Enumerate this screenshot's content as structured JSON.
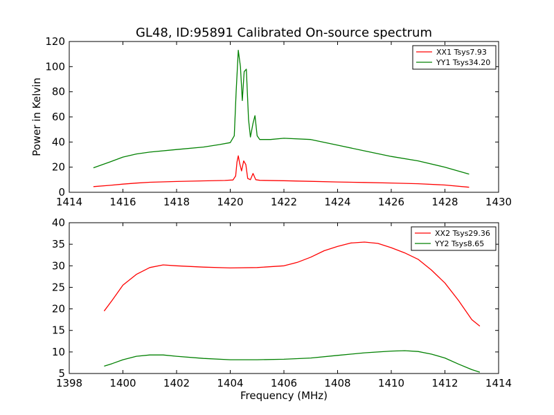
{
  "chart_data": [
    {
      "type": "line",
      "title": "GL48, ID:95891 Calibrated On-source spectrum",
      "xlabel": "",
      "ylabel": "Power in Kelvin",
      "xlim": [
        1414,
        1430
      ],
      "ylim": [
        0,
        120
      ],
      "xticks": [
        1414,
        1416,
        1418,
        1420,
        1422,
        1424,
        1426,
        1428,
        1430
      ],
      "yticks": [
        0,
        20,
        40,
        60,
        80,
        100,
        120
      ],
      "grid": false,
      "legend": "top-right",
      "series": [
        {
          "name": "XX1 Tsys7.93",
          "color": "#ff0000",
          "x": [
            1414.9,
            1415.5,
            1416,
            1416.5,
            1417,
            1418,
            1419,
            1419.8,
            1420.1,
            1420.2,
            1420.25,
            1420.3,
            1420.35,
            1420.42,
            1420.5,
            1420.58,
            1420.65,
            1420.75,
            1420.85,
            1420.95,
            1421.1,
            1422,
            1423,
            1424,
            1425,
            1426,
            1427,
            1428,
            1428.9
          ],
          "y": [
            4.5,
            5.5,
            6.5,
            7.3,
            8,
            8.6,
            9.1,
            9.4,
            9.8,
            13,
            24,
            29,
            23,
            17,
            25,
            22,
            11,
            10,
            15,
            10,
            9.5,
            9.2,
            8.7,
            8.2,
            7.8,
            7.4,
            6.8,
            5.8,
            4
          ]
        },
        {
          "name": "YY1 Tsys34.20",
          "color": "#008000",
          "x": [
            1414.9,
            1415.5,
            1416,
            1416.5,
            1417,
            1418,
            1419,
            1419.6,
            1420,
            1420.15,
            1420.22,
            1420.3,
            1420.38,
            1420.45,
            1420.52,
            1420.6,
            1420.68,
            1420.75,
            1420.85,
            1420.92,
            1421,
            1421.1,
            1421.5,
            1422,
            1423,
            1424,
            1425,
            1426,
            1427,
            1428,
            1428.9
          ],
          "y": [
            19.5,
            24,
            28,
            30.5,
            32,
            34,
            36,
            38,
            39.5,
            45,
            80,
            113,
            100,
            73,
            96,
            98,
            58,
            44,
            55,
            61,
            45,
            42,
            42,
            43,
            42,
            37.5,
            33,
            28.5,
            25,
            20,
            14.5
          ]
        }
      ]
    },
    {
      "type": "line",
      "title": "",
      "xlabel": "Frequency (MHz)",
      "ylabel": "",
      "xlim": [
        1398,
        1414
      ],
      "ylim": [
        5,
        40
      ],
      "xticks": [
        1398,
        1400,
        1402,
        1404,
        1406,
        1408,
        1410,
        1412,
        1414
      ],
      "yticks": [
        5,
        10,
        15,
        20,
        25,
        30,
        35,
        40
      ],
      "grid": false,
      "legend": "top-right",
      "series": [
        {
          "name": "XX2 Tsys29.36",
          "color": "#ff0000",
          "x": [
            1399.3,
            1399.6,
            1400,
            1400.5,
            1401,
            1401.5,
            1402,
            1403,
            1404,
            1405,
            1406,
            1406.5,
            1407,
            1407.5,
            1408,
            1408.5,
            1409,
            1409.5,
            1410,
            1410.5,
            1411,
            1411.5,
            1412,
            1412.5,
            1413,
            1413.3
          ],
          "y": [
            19.5,
            22,
            25.5,
            28,
            29.6,
            30.2,
            30,
            29.7,
            29.5,
            29.6,
            30,
            30.8,
            32,
            33.5,
            34.5,
            35.3,
            35.5,
            35.2,
            34.2,
            33,
            31.5,
            29,
            26,
            22,
            17.5,
            16
          ]
        },
        {
          "name": "YY2 Tsys8.65",
          "color": "#008000",
          "x": [
            1399.3,
            1399.6,
            1400,
            1400.5,
            1401,
            1401.5,
            1402,
            1403,
            1404,
            1405,
            1406,
            1407,
            1408,
            1409,
            1410,
            1410.5,
            1411,
            1411.5,
            1412,
            1412.5,
            1413,
            1413.3
          ],
          "y": [
            6.7,
            7.3,
            8.2,
            9,
            9.3,
            9.3,
            9,
            8.5,
            8.2,
            8.2,
            8.3,
            8.6,
            9.2,
            9.8,
            10.2,
            10.3,
            10.1,
            9.5,
            8.6,
            7.2,
            5.9,
            5.3
          ]
        }
      ]
    }
  ]
}
